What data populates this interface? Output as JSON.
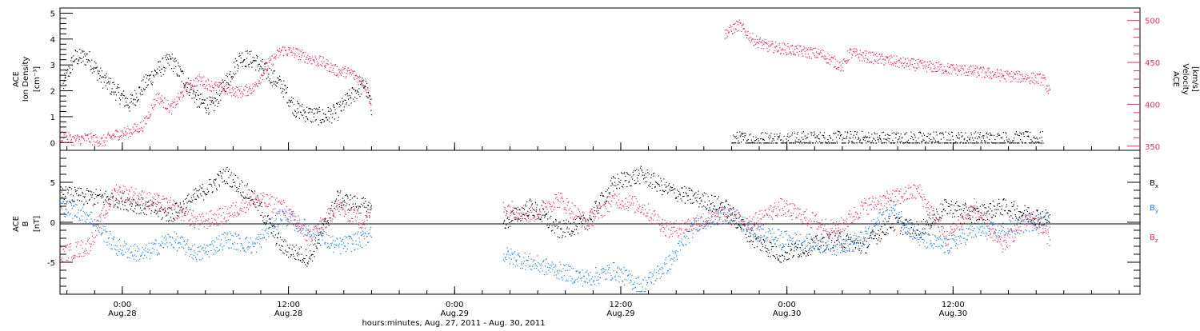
{
  "chart_data": [
    {
      "type": "scatter",
      "panel": "top",
      "xlabel": "hours:minutes, Aug. 27, 2011 - Aug. 30, 2011",
      "ylabel_left_lines": [
        "ACE",
        "Ion Density"
      ],
      "ylabel_left_unit": "[cm⁻³]",
      "ylabel_right_lines": [
        "ACE",
        "Velocity"
      ],
      "ylabel_right_unit": "[km/s]",
      "ylim_left": [
        -0.3,
        5.2
      ],
      "ylim_right": [
        345,
        515
      ],
      "yticks_left": [
        "0",
        "1",
        "2",
        "3",
        "4",
        "5"
      ],
      "yticks_right": [
        "350",
        "400",
        "450",
        "500"
      ],
      "colors": {
        "density": "#000000",
        "velocity": "#e8305a"
      },
      "series": [
        {
          "axis": "left",
          "x": [
            0.2,
            1.0,
            2.0,
            3.0,
            4.0,
            5.0,
            6.0,
            7.0,
            8.0,
            9.0,
            10.0,
            11.0,
            12.0,
            13.0,
            14.0,
            15.0,
            16.0,
            17.0,
            18.0,
            19.0,
            20.0,
            21.0,
            22.0,
            22.5,
            48.5,
            51.0,
            54.0,
            57.0,
            60.0,
            63.0,
            66.0,
            69.0,
            71.0
          ],
          "values": [
            2.2,
            3.3,
            3.3,
            2.5,
            2.0,
            1.5,
            2.2,
            2.8,
            3.2,
            2.4,
            1.6,
            1.4,
            2.4,
            3.3,
            3.2,
            2.7,
            2.2,
            1.3,
            1.1,
            1.0,
            1.2,
            1.8,
            2.3,
            1.2,
            0.1,
            0.1,
            0.1,
            0.12,
            0.1,
            0.1,
            0.1,
            0.1,
            0.1
          ]
        },
        {
          "axis": "right",
          "x": [
            0.0,
            1.0,
            2.0,
            3.0,
            4.0,
            5.0,
            6.0,
            7.0,
            8.0,
            9.0,
            10.0,
            11.0,
            12.0,
            13.0,
            14.0,
            15.0,
            16.0,
            17.0,
            18.0,
            19.0,
            20.0,
            21.0,
            22.0,
            22.5,
            48.0,
            49.0,
            50.0,
            51.0,
            53.0,
            55.0,
            56.5,
            57.0,
            58.0,
            60.0,
            62.0,
            64.0,
            66.0,
            68.0,
            70.0,
            71.0,
            71.5
          ],
          "values": [
            362,
            358,
            360,
            356,
            364,
            368,
            375,
            410,
            395,
            418,
            430,
            422,
            418,
            415,
            420,
            448,
            465,
            462,
            455,
            450,
            440,
            438,
            425,
            400,
            485,
            495,
            478,
            470,
            465,
            460,
            445,
            462,
            458,
            452,
            447,
            443,
            440,
            435,
            432,
            430,
            413
          ]
        }
      ]
    },
    {
      "type": "scatter",
      "panel": "bottom",
      "xlabel": "hours:minutes, Aug. 27, 2011 - Aug. 30, 2011",
      "ylabel_left_lines": [
        "ACE",
        "B"
      ],
      "ylabel_left_unit": "[nT]",
      "ylim": [
        -9,
        9
      ],
      "yticks": [
        "-5",
        "0",
        "5"
      ],
      "xticks": [
        "0:00",
        "12:00",
        "0:00",
        "12:00",
        "0:00",
        "12:00"
      ],
      "xticks_sub": [
        "Aug.28",
        "Aug.28",
        "Aug.29",
        "Aug.29",
        "Aug.30",
        "Aug.30"
      ],
      "legend": [
        "B",
        "B",
        "B"
      ],
      "legend_subscripts": [
        "x",
        "y",
        "z"
      ],
      "colors": {
        "Bx": "#000000",
        "By": "#1f7fe0",
        "Bz": "#e8305a"
      },
      "series": [
        {
          "x": [
            0.0,
            2.0,
            4.0,
            6.0,
            8.0,
            10.0,
            12.0,
            14.0,
            16.0,
            18.0,
            20.0,
            22.0,
            22.5,
            32.0,
            34.0,
            36.0,
            38.0,
            40.0,
            42.0,
            44.0,
            46.0,
            48.0,
            50.0,
            52.0,
            56.0,
            58.0,
            60.0,
            62.0,
            64.0,
            66.0,
            68.0,
            70.0,
            71.5
          ],
          "values": [
            3.5,
            3.2,
            3.0,
            2.0,
            1.0,
            3.5,
            6.0,
            3.0,
            -3.0,
            -4.5,
            3.0,
            2.0,
            1.5,
            0.0,
            2.0,
            -1.0,
            0.0,
            5.0,
            6.0,
            4.0,
            3.0,
            2.0,
            -2.0,
            -4.0,
            -2.0,
            -3.0,
            0.0,
            -1.0,
            2.0,
            1.0,
            2.0,
            1.0,
            0.5
          ]
        },
        {
          "x": [
            0.0,
            2.0,
            4.0,
            6.0,
            8.0,
            10.0,
            12.0,
            14.0,
            16.0,
            18.0,
            20.0,
            22.0,
            22.5,
            32.0,
            34.0,
            36.0,
            38.0,
            40.0,
            42.0,
            44.0,
            46.0,
            48.0,
            50.0,
            52.0,
            56.0,
            58.0,
            60.0,
            62.0,
            64.0,
            66.0,
            68.0,
            70.0,
            71.5
          ],
          "values": [
            2.0,
            1.0,
            -3.0,
            -4.0,
            -2.0,
            -4.0,
            -2.0,
            -3.0,
            1.0,
            -1.0,
            -3.0,
            -2.0,
            -1.0,
            -4.0,
            -5.0,
            -6.0,
            -7.0,
            -6.0,
            -8.0,
            -5.0,
            0.0,
            1.0,
            -1.0,
            -2.0,
            -3.0,
            -2.0,
            2.0,
            -2.0,
            -3.0,
            -1.0,
            -1.0,
            0.0,
            0.5
          ]
        },
        {
          "x": [
            0.0,
            2.0,
            4.0,
            6.0,
            8.0,
            10.0,
            12.0,
            14.0,
            16.0,
            18.0,
            20.0,
            22.0,
            22.5,
            32.0,
            34.0,
            36.0,
            38.0,
            40.0,
            42.0,
            44.0,
            46.0,
            48.0,
            50.0,
            52.0,
            56.0,
            58.0,
            60.0,
            62.0,
            64.0,
            66.0,
            68.0,
            70.0,
            71.5
          ],
          "values": [
            -4.0,
            -3.0,
            4.0,
            3.0,
            2.0,
            0.0,
            1.0,
            3.0,
            2.0,
            -2.0,
            2.0,
            0.0,
            2.0,
            2.0,
            1.0,
            3.0,
            0.0,
            3.0,
            2.0,
            -1.0,
            0.0,
            1.0,
            0.0,
            2.0,
            -1.0,
            2.0,
            3.0,
            4.0,
            -2.0,
            2.0,
            -3.0,
            1.0,
            -2.0
          ]
        }
      ]
    }
  ]
}
